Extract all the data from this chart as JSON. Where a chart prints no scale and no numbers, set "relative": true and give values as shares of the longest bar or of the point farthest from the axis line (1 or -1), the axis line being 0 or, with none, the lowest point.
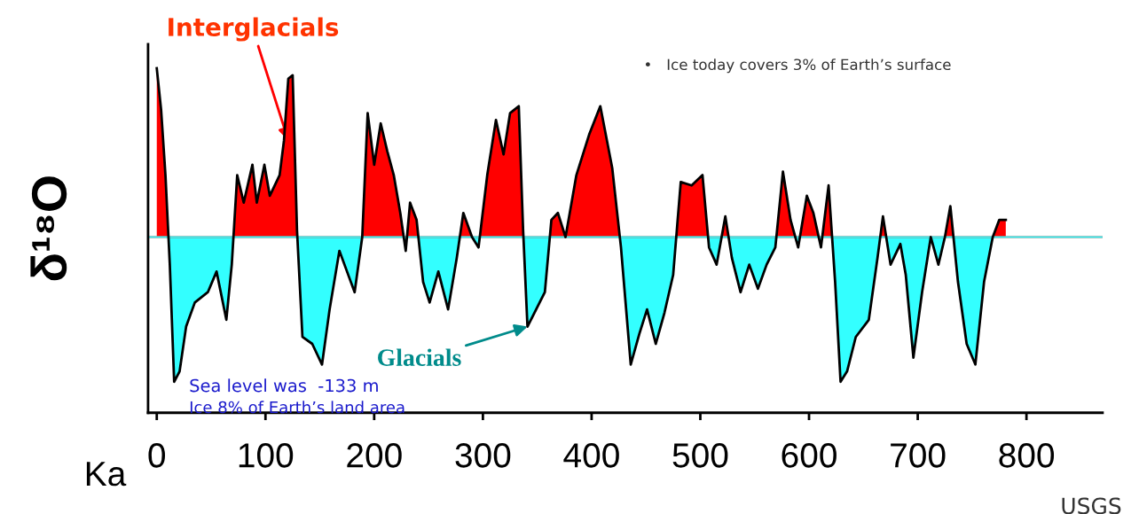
{
  "chart_data": {
    "type": "line",
    "marker": "none",
    "line_style": "solid",
    "relative": true,
    "xlabel": "Ka",
    "ylabel": "δ¹⁸O",
    "x": [
      0,
      4,
      8,
      12,
      16,
      21,
      27,
      35,
      47,
      55,
      64,
      69,
      74,
      80,
      88,
      92,
      99,
      104,
      113,
      117,
      121,
      125,
      129,
      134,
      143,
      152,
      159,
      168,
      175,
      182,
      189,
      194,
      200,
      206,
      212,
      218,
      224,
      229,
      233,
      239,
      245,
      251,
      259,
      268,
      276,
      282,
      290,
      296,
      304,
      312,
      319,
      325,
      333,
      337,
      341,
      349,
      357,
      363,
      369,
      376,
      386,
      398,
      408,
      419,
      427,
      436,
      444,
      451,
      459,
      467,
      475,
      482,
      492,
      502,
      508,
      515,
      523,
      529,
      537,
      545,
      553,
      561,
      569,
      576,
      583,
      590,
      598,
      604,
      611,
      618,
      624,
      629,
      635,
      643,
      655,
      663,
      668,
      675,
      684,
      689,
      696,
      704,
      712,
      719,
      725,
      730,
      737,
      745,
      753,
      761,
      769,
      775,
      781
    ],
    "series": [
      {
        "color": "#000000",
        "values": [
          1.0,
          0.88,
          0.69,
          0.43,
          0.09,
          0.12,
          0.25,
          0.32,
          0.35,
          0.41,
          0.27,
          0.43,
          0.69,
          0.61,
          0.72,
          0.61,
          0.72,
          0.63,
          0.69,
          0.79,
          0.97,
          0.98,
          0.53,
          0.22,
          0.2,
          0.14,
          0.3,
          0.47,
          0.41,
          0.35,
          0.51,
          0.87,
          0.72,
          0.84,
          0.76,
          0.69,
          0.58,
          0.47,
          0.61,
          0.56,
          0.38,
          0.32,
          0.41,
          0.3,
          0.45,
          0.58,
          0.51,
          0.48,
          0.69,
          0.85,
          0.75,
          0.87,
          0.89,
          0.53,
          0.25,
          0.3,
          0.35,
          0.56,
          0.58,
          0.51,
          0.69,
          0.81,
          0.89,
          0.71,
          0.48,
          0.14,
          0.23,
          0.3,
          0.2,
          0.29,
          0.4,
          0.67,
          0.66,
          0.69,
          0.48,
          0.43,
          0.57,
          0.45,
          0.35,
          0.43,
          0.36,
          0.43,
          0.48,
          0.7,
          0.56,
          0.48,
          0.63,
          0.58,
          0.48,
          0.66,
          0.38,
          0.09,
          0.12,
          0.22,
          0.27,
          0.45,
          0.57,
          0.43,
          0.49,
          0.4,
          0.16,
          0.35,
          0.51,
          0.43,
          0.51,
          0.6,
          0.38,
          0.2,
          0.14,
          0.38,
          0.51,
          0.56,
          0.56
        ]
      }
    ],
    "ref_lines": [
      {
        "axis": "y",
        "value": 0.51,
        "color": "#ff0000"
      },
      {
        "axis": "y",
        "value": 0.51,
        "color": "#33ffff"
      }
    ],
    "xlim": [
      -8,
      870
    ],
    "xticks": [
      0,
      100,
      200,
      300,
      400,
      500,
      600,
      700,
      800
    ],
    "grid": false,
    "legend": false,
    "annotations": [
      {
        "text": "Interglacials",
        "x": 121,
        "y": 0.79
      },
      {
        "text": "Glacials",
        "x": 341,
        "y": 0.25
      },
      "Sea level was  -133 m",
      "Ice 8% of Earth’s land area",
      "•   Ice today covers 3% of Earth’s surface",
      "USGS"
    ]
  }
}
